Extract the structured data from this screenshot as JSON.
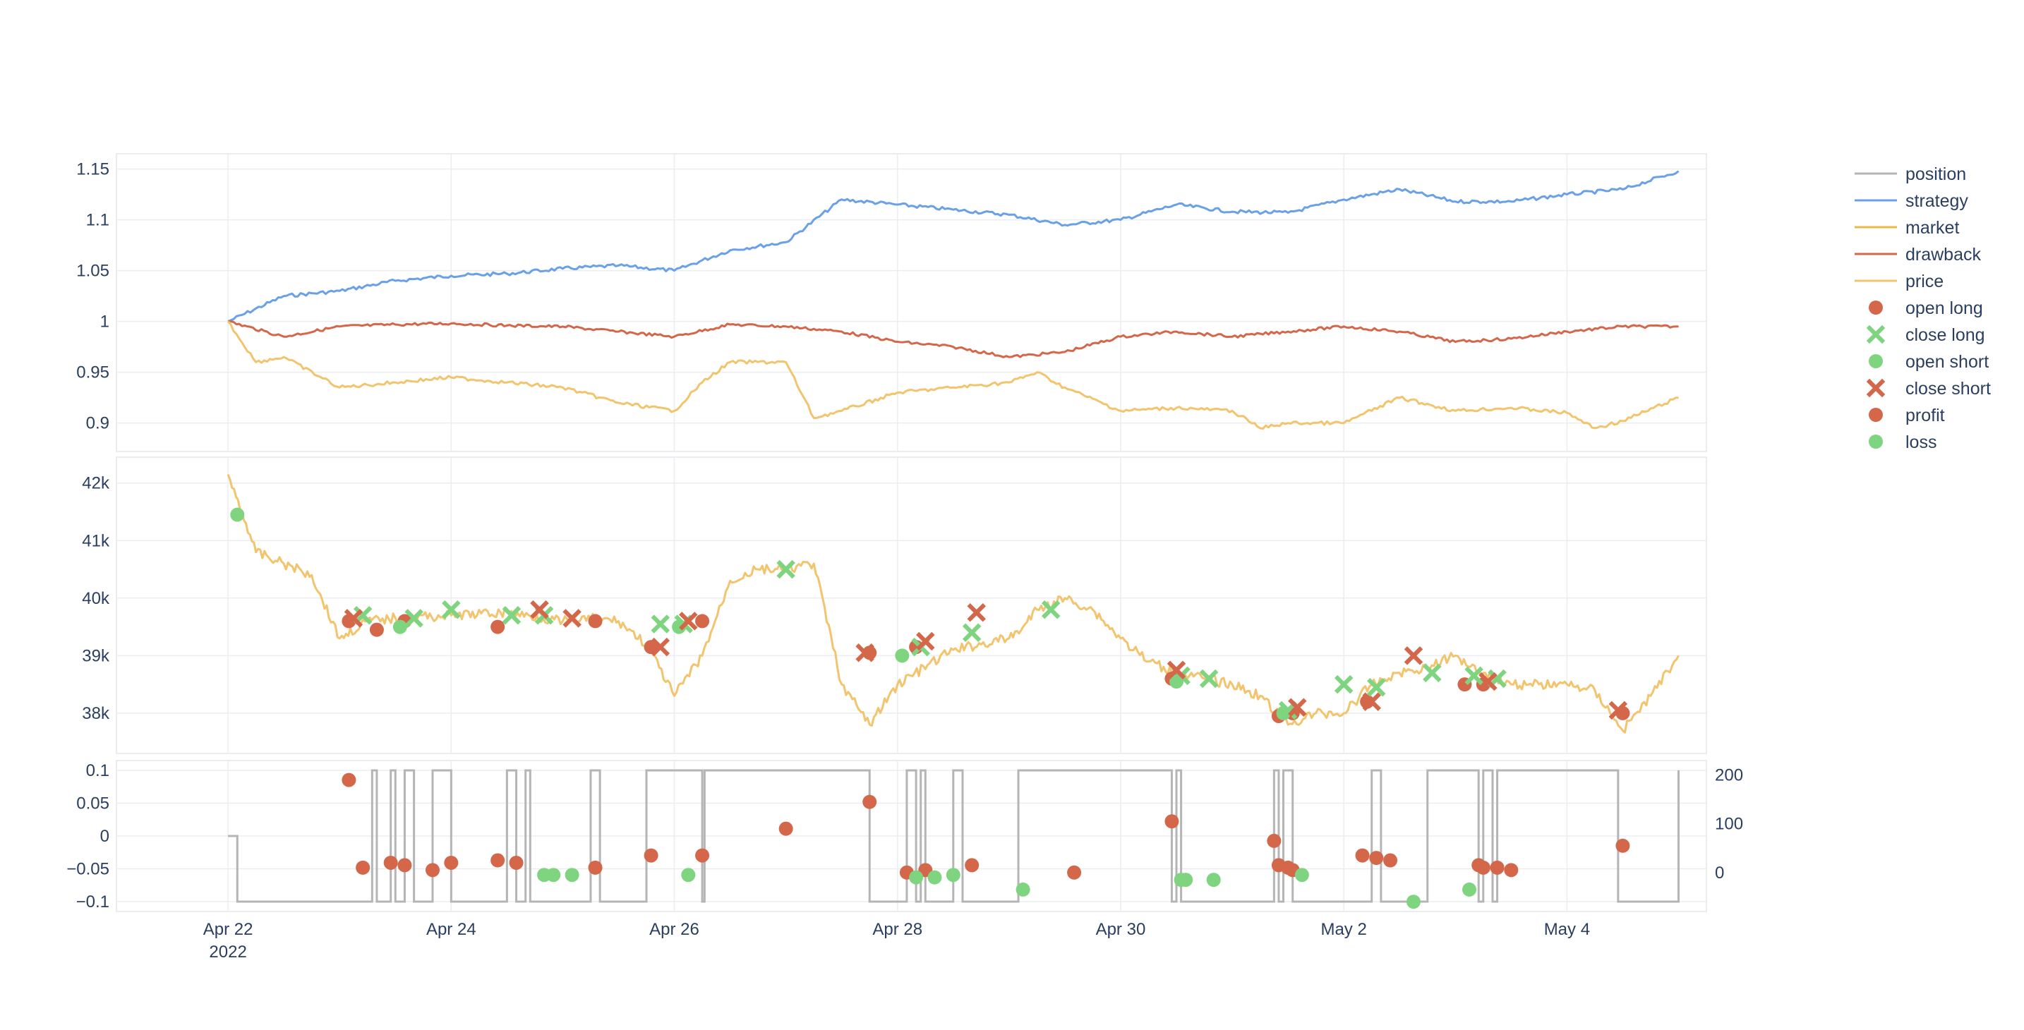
{
  "chart_data": [
    {
      "type": "line",
      "panel": "performance",
      "y_ticks": [
        "1.15",
        "1.1",
        "1.05",
        "1",
        "0.95",
        "0.9"
      ],
      "y_tick_values": [
        1.15,
        1.1,
        1.05,
        1.0,
        0.95,
        0.9
      ],
      "ylim": [
        0.872,
        1.165
      ],
      "series": [
        {
          "name": "strategy",
          "color": "#6aa0e8",
          "x": [
            "2022-04-22",
            "2022-04-22 12:00",
            "2022-04-23",
            "2022-04-23 12:00",
            "2022-04-24",
            "2022-04-24 12:00",
            "2022-04-25",
            "2022-04-25 12:00",
            "2022-04-26",
            "2022-04-26 12:00",
            "2022-04-27",
            "2022-04-27 12:00",
            "2022-04-28",
            "2022-04-28 12:00",
            "2022-04-29",
            "2022-04-29 12:00",
            "2022-04-30",
            "2022-04-30 12:00",
            "2022-05-01",
            "2022-05-01 12:00",
            "2022-05-02",
            "2022-05-02 12:00",
            "2022-05-03",
            "2022-05-03 12:00",
            "2022-05-04",
            "2022-05-04 12:00",
            "2022-05-05"
          ],
          "values": [
            1.0,
            1.025,
            1.03,
            1.04,
            1.045,
            1.047,
            1.052,
            1.055,
            1.05,
            1.07,
            1.078,
            1.12,
            1.115,
            1.11,
            1.105,
            1.095,
            1.1,
            1.115,
            1.108,
            1.107,
            1.12,
            1.13,
            1.118,
            1.118,
            1.125,
            1.13,
            1.148
          ]
        },
        {
          "name": "drawback",
          "color": "#d4664a",
          "x": [
            "2022-04-22",
            "2022-04-22 12:00",
            "2022-04-23",
            "2022-04-23 12:00",
            "2022-04-24",
            "2022-04-24 12:00",
            "2022-04-25",
            "2022-04-25 12:00",
            "2022-04-26",
            "2022-04-26 12:00",
            "2022-04-27",
            "2022-04-27 12:00",
            "2022-04-28",
            "2022-04-28 12:00",
            "2022-04-29",
            "2022-04-29 12:00",
            "2022-04-30",
            "2022-04-30 12:00",
            "2022-05-01",
            "2022-05-01 12:00",
            "2022-05-02",
            "2022-05-02 12:00",
            "2022-05-03",
            "2022-05-03 12:00",
            "2022-05-04",
            "2022-05-04 12:00",
            "2022-05-05"
          ],
          "values": [
            1.0,
            0.985,
            0.995,
            0.997,
            0.998,
            0.996,
            0.995,
            0.99,
            0.985,
            0.997,
            0.995,
            0.99,
            0.98,
            0.975,
            0.965,
            0.97,
            0.985,
            0.99,
            0.985,
            0.99,
            0.995,
            0.99,
            0.98,
            0.983,
            0.99,
            0.995,
            0.995
          ]
        },
        {
          "name": "market",
          "color": "#f2c46d",
          "x": [
            "2022-04-22",
            "2022-04-22 06:00",
            "2022-04-22 12:00",
            "2022-04-23",
            "2022-04-23 12:00",
            "2022-04-24",
            "2022-04-24 12:00",
            "2022-04-25",
            "2022-04-25 12:00",
            "2022-04-26",
            "2022-04-26 06:00",
            "2022-04-26 12:00",
            "2022-04-27",
            "2022-04-27 06:00",
            "2022-04-27 12:00",
            "2022-04-28",
            "2022-04-28 12:00",
            "2022-04-29",
            "2022-04-29 06:00",
            "2022-04-29 12:00",
            "2022-04-30",
            "2022-04-30 12:00",
            "2022-05-01",
            "2022-05-01 06:00",
            "2022-05-01 12:00",
            "2022-05-02",
            "2022-05-02 12:00",
            "2022-05-03",
            "2022-05-03 12:00",
            "2022-05-04",
            "2022-05-04 06:00",
            "2022-05-04 12:00",
            "2022-05-05"
          ],
          "values": [
            1.0,
            0.96,
            0.965,
            0.935,
            0.94,
            0.945,
            0.94,
            0.935,
            0.92,
            0.912,
            0.94,
            0.96,
            0.96,
            0.905,
            0.912,
            0.93,
            0.935,
            0.94,
            0.95,
            0.935,
            0.912,
            0.915,
            0.912,
            0.895,
            0.9,
            0.9,
            0.925,
            0.912,
            0.915,
            0.91,
            0.895,
            0.902,
            0.925
          ]
        }
      ]
    },
    {
      "type": "line",
      "panel": "price",
      "y_ticks": [
        "42k",
        "41k",
        "40k",
        "39k",
        "38k"
      ],
      "y_tick_values": [
        42000,
        41000,
        40000,
        39000,
        38000
      ],
      "ylim": [
        37300,
        42450
      ],
      "series": [
        {
          "name": "price",
          "color": "#f2c46d",
          "x": [
            "2022-04-22",
            "2022-04-22 03:00",
            "2022-04-22 06:00",
            "2022-04-22 12:00",
            "2022-04-22 18:00",
            "2022-04-23",
            "2022-04-23 06:00",
            "2022-04-23 12:00",
            "2022-04-24",
            "2022-04-24 12:00",
            "2022-04-25",
            "2022-04-25 06:00",
            "2022-04-25 12:00",
            "2022-04-25 18:00",
            "2022-04-26",
            "2022-04-26 06:00",
            "2022-04-26 12:00",
            "2022-04-26 18:00",
            "2022-04-27",
            "2022-04-27 06:00",
            "2022-04-27 12:00",
            "2022-04-27 18:00",
            "2022-04-28",
            "2022-04-28 12:00",
            "2022-04-29",
            "2022-04-29 03:00",
            "2022-04-29 06:00",
            "2022-04-29 12:00",
            "2022-04-29 18:00",
            "2022-04-30",
            "2022-04-30 06:00",
            "2022-04-30 12:00",
            "2022-04-30 18:00",
            "2022-05-01",
            "2022-05-01 06:00",
            "2022-05-01 12:00",
            "2022-05-01 18:00",
            "2022-05-02",
            "2022-05-02 06:00",
            "2022-05-02 12:00",
            "2022-05-02 18:00",
            "2022-05-03",
            "2022-05-03 06:00",
            "2022-05-03 12:00",
            "2022-05-03 18:00",
            "2022-05-04",
            "2022-05-04 06:00",
            "2022-05-04 12:00",
            "2022-05-04 18:00",
            "2022-05-05"
          ],
          "values": [
            42150,
            41500,
            40800,
            40600,
            40400,
            39300,
            39600,
            39650,
            39700,
            39750,
            39600,
            39650,
            39600,
            39200,
            38300,
            39000,
            40300,
            40500,
            40500,
            40600,
            38500,
            37800,
            38500,
            39100,
            39300,
            39500,
            39800,
            40000,
            39800,
            39300,
            38900,
            38700,
            38600,
            38500,
            38300,
            37800,
            38000,
            38000,
            38500,
            38700,
            38800,
            39000,
            38700,
            38500,
            38500,
            38500,
            38400,
            37700,
            38300,
            39000
          ]
        }
      ]
    },
    {
      "type": "line",
      "panel": "position",
      "y_ticks": [
        "0.1",
        "0.05",
        "0",
        "−0.05",
        "−0.1"
      ],
      "y_tick_values": [
        0.1,
        0.05,
        0,
        -0.05,
        -0.1
      ],
      "ylim": [
        -0.115,
        0.115
      ],
      "y2_ticks": [
        "200",
        "100",
        "0"
      ],
      "y2_tick_values": [
        200,
        100,
        0
      ],
      "y2lim": [
        -80,
        230
      ],
      "x_ticks": [
        "Apr 22\n2022",
        "Apr 24",
        "Apr 26",
        "Apr 28",
        "Apr 30",
        "May 2",
        "May 4"
      ],
      "x_tick_values": [
        "2022-04-22",
        "2022-04-24",
        "2022-04-26",
        "2022-04-28",
        "2022-04-30",
        "2022-05-02",
        "2022-05-04"
      ],
      "xlim": [
        "2022-04-21 00:00",
        "2022-05-05 06:00"
      ],
      "series": [
        {
          "name": "position",
          "color": "#b5b5b5",
          "x": [
            "2022-04-22",
            "2022-04-22 02:00",
            "2022-04-23 07:00",
            "2022-04-23 08:00",
            "2022-04-23 11:00",
            "2022-04-23 12:00",
            "2022-04-23 14:00",
            "2022-04-23 16:00",
            "2022-04-23 20:00",
            "2022-04-24",
            "2022-04-24 12:00",
            "2022-04-24 14:00",
            "2022-04-24 16:00",
            "2022-04-24 17:00",
            "2022-04-25 06:00",
            "2022-04-25 08:00",
            "2022-04-25 18:00",
            "2022-04-26 06:00",
            "2022-04-26 06:30",
            "2022-04-27 18:00",
            "2022-04-28 02:00",
            "2022-04-28 04:00",
            "2022-04-28 05:00",
            "2022-04-28 06:00",
            "2022-04-28 12:00",
            "2022-04-28 14:00",
            "2022-04-29 02:00",
            "2022-04-30 11:00",
            "2022-04-30 12:00",
            "2022-04-30 13:00",
            "2022-05-01 09:00",
            "2022-05-01 10:00",
            "2022-05-01 11:00",
            "2022-05-01 13:00",
            "2022-05-02 06:00",
            "2022-05-02 08:00",
            "2022-05-02 18:00",
            "2022-05-03 05:00",
            "2022-05-03 06:00",
            "2022-05-03 08:00",
            "2022-05-03 09:00",
            "2022-05-04 11:00",
            "2022-05-05"
          ],
          "values": [
            0,
            -0.1,
            0.1,
            -0.1,
            0.1,
            -0.1,
            0.1,
            -0.1,
            0.1,
            -0.1,
            0.1,
            -0.1,
            0.1,
            -0.1,
            0.1,
            -0.1,
            0.1,
            -0.1,
            0.1,
            -0.1,
            0.1,
            -0.1,
            0.1,
            -0.1,
            0.1,
            -0.1,
            0.1,
            -0.1,
            0.1,
            -0.1,
            0.1,
            -0.1,
            0.1,
            -0.1,
            0.1,
            -0.1,
            0.1,
            -0.1,
            0.1,
            -0.1,
            0.1,
            -0.1,
            0.1
          ]
        }
      ]
    }
  ],
  "trade_markers": {
    "open_long": {
      "x": [
        "2022-04-23 02:00",
        "2022-04-23 08:00",
        "2022-04-23 14:00",
        "2022-04-24 10:00",
        "2022-04-25 07:00",
        "2022-04-25 19:00",
        "2022-04-26 06:00",
        "2022-04-27 18:00",
        "2022-04-28 04:00",
        "2022-04-30 11:00",
        "2022-05-01 10:00",
        "2022-05-01 13:00",
        "2022-05-02 05:00",
        "2022-05-03 02:00",
        "2022-05-03 06:00",
        "2022-05-04 12:00"
      ],
      "values": [
        39600,
        39450,
        39600,
        39500,
        39600,
        39150,
        39600,
        39050,
        39150,
        38600,
        37950,
        38000,
        38200,
        38500,
        38500,
        38000
      ]
    },
    "close_long": {
      "x": [
        "2022-04-23 05:00",
        "2022-04-23 16:00",
        "2022-04-24",
        "2022-04-24 13:00",
        "2022-04-24 20:00",
        "2022-04-25 21:00",
        "2022-04-26 02:00",
        "2022-04-27",
        "2022-04-28 05:00",
        "2022-04-28 16:00",
        "2022-04-29 09:00",
        "2022-04-30 13:00",
        "2022-04-30 19:00",
        "2022-05-01 12:00",
        "2022-05-02",
        "2022-05-02 07:00",
        "2022-05-02 19:00",
        "2022-05-03 04:00",
        "2022-05-03 09:00"
      ],
      "values": [
        39700,
        39650,
        39800,
        39700,
        39700,
        39550,
        39550,
        40500,
        39150,
        39400,
        39800,
        38650,
        38600,
        38050,
        38500,
        38450,
        38700,
        38650,
        38600
      ]
    },
    "open_short": {
      "x": [
        "2022-04-22 02:00",
        "2022-04-23 13:00",
        "2022-04-26 01:00",
        "2022-04-28 01:00",
        "2022-04-30 12:00",
        "2022-05-01 11:00"
      ],
      "values": [
        41450,
        39500,
        39500,
        39000,
        38550,
        38000
      ]
    },
    "close_short": {
      "x": [
        "2022-04-23 03:00",
        "2022-04-24 19:00",
        "2022-04-25 02:00",
        "2022-04-25 21:00",
        "2022-04-26 03:00",
        "2022-04-27 17:00",
        "2022-04-28 06:00",
        "2022-04-28 17:00",
        "2022-04-30 12:00",
        "2022-05-01 14:00",
        "2022-05-02 06:00",
        "2022-05-02 15:00",
        "2022-05-03 07:00",
        "2022-05-04 11:00"
      ],
      "values": [
        39650,
        39800,
        39650,
        39150,
        39600,
        39050,
        39250,
        39750,
        38750,
        38100,
        38200,
        39000,
        38550,
        38050
      ]
    },
    "profit": {
      "x": [
        "2022-04-23 02:00",
        "2022-04-23 05:00",
        "2022-04-23 11:00",
        "2022-04-23 14:00",
        "2022-04-23 20:00",
        "2022-04-24",
        "2022-04-24 10:00",
        "2022-04-24 14:00",
        "2022-04-25 07:00",
        "2022-04-25 19:00",
        "2022-04-26 06:00",
        "2022-04-27",
        "2022-04-27 18:00",
        "2022-04-28 02:00",
        "2022-04-28 06:00",
        "2022-04-28 16:00",
        "2022-04-29 14:00",
        "2022-04-30 11:00",
        "2022-05-01 09:00",
        "2022-05-01 10:00",
        "2022-05-01 12:00",
        "2022-05-01 13:00",
        "2022-05-02 04:00",
        "2022-05-02 07:00",
        "2022-05-02 10:00",
        "2022-05-03 05:00",
        "2022-05-03 06:00",
        "2022-05-03 09:00",
        "2022-05-03 12:00",
        "2022-05-04 12:00"
      ],
      "values": [
        190,
        10,
        20,
        15,
        5,
        20,
        25,
        20,
        10,
        35,
        35,
        90,
        145,
        0,
        5,
        15,
        0,
        105,
        65,
        15,
        10,
        5,
        35,
        30,
        25,
        15,
        10,
        10,
        5,
        55
      ]
    },
    "loss": {
      "x": [
        "2022-04-24 20:00",
        "2022-04-24 22:00",
        "2022-04-25 02:00",
        "2022-04-26 03:00",
        "2022-04-28 04:00",
        "2022-04-28 08:00",
        "2022-04-28 12:00",
        "2022-04-29 03:00",
        "2022-04-30 13:00",
        "2022-04-30 14:00",
        "2022-04-30 20:00",
        "2022-05-01 15:00",
        "2022-05-02 15:00",
        "2022-05-03 03:00"
      ],
      "values": [
        -5,
        -5,
        -5,
        -5,
        -10,
        -10,
        -5,
        -35,
        -15,
        -15,
        -15,
        -5,
        -60,
        -35
      ]
    }
  },
  "legend": {
    "position": "top-right",
    "items": [
      {
        "label": "position",
        "symbol": "line",
        "color": "#b5b5b5"
      },
      {
        "label": "strategy",
        "symbol": "line",
        "color": "#6aa0e8"
      },
      {
        "label": "market",
        "symbol": "line",
        "color": "#e8b84a"
      },
      {
        "label": "drawback",
        "symbol": "line",
        "color": "#d4664a"
      },
      {
        "label": "price",
        "symbol": "line",
        "color": "#f2c46d"
      },
      {
        "label": "open long",
        "symbol": "circle",
        "color": "#d4664a"
      },
      {
        "label": "close long",
        "symbol": "x",
        "color": "#7fd47f"
      },
      {
        "label": "open short",
        "symbol": "circle",
        "color": "#7fd47f"
      },
      {
        "label": "close short",
        "symbol": "x",
        "color": "#d4664a"
      },
      {
        "label": "profit",
        "symbol": "circle",
        "color": "#d4664a"
      },
      {
        "label": "loss",
        "symbol": "circle",
        "color": "#7fd47f"
      }
    ]
  }
}
